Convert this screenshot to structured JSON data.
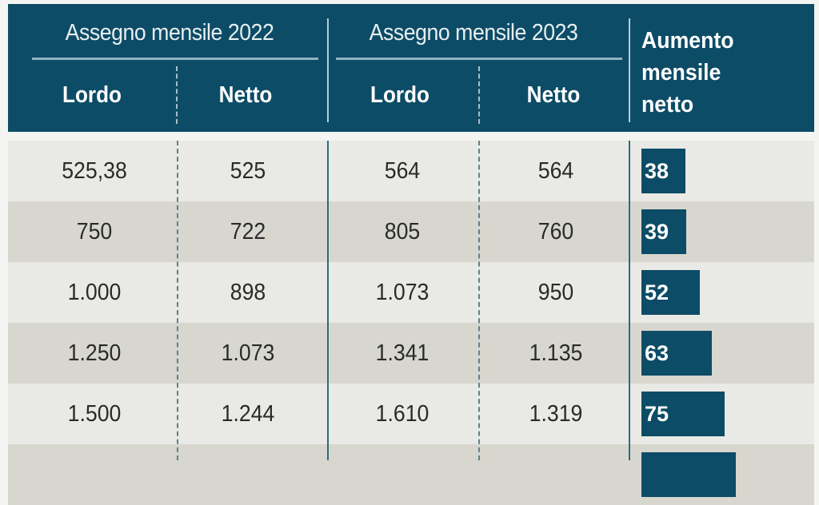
{
  "header": {
    "group_2022": "Assegno mensile 2022",
    "group_2023": "Assegno mensile 2023",
    "lordo": "Lordo",
    "netto": "Netto",
    "increase_line1": "Aumento",
    "increase_line2": "mensile",
    "increase_line3": "netto"
  },
  "colors": {
    "header_bg": "#0d4c66",
    "row_light": "#e9e9e5",
    "row_dark": "#d8d7cf",
    "bar": "#0d4c66"
  },
  "chart_data": {
    "type": "table",
    "columns": [
      "Assegno mensile 2022 Lordo",
      "Assegno mensile 2022 Netto",
      "Assegno mensile 2023 Lordo",
      "Assegno mensile 2023 Netto",
      "Aumento mensile netto"
    ],
    "rows": [
      {
        "lordo_2022": "525,38",
        "netto_2022": "525",
        "lordo_2023": "564",
        "netto_2023": "564",
        "aumento": "38",
        "aumento_value": 38
      },
      {
        "lordo_2022": "750",
        "netto_2022": "722",
        "lordo_2023": "805",
        "netto_2023": "760",
        "aumento": "39",
        "aumento_value": 39
      },
      {
        "lordo_2022": "1.000",
        "netto_2022": "898",
        "lordo_2023": "1.073",
        "netto_2023": "950",
        "aumento": "52",
        "aumento_value": 52
      },
      {
        "lordo_2022": "1.250",
        "netto_2022": "1.073",
        "lordo_2023": "1.341",
        "netto_2023": "1.135",
        "aumento": "63",
        "aumento_value": 63
      },
      {
        "lordo_2022": "1.500",
        "netto_2022": "1.244",
        "lordo_2023": "1.610",
        "netto_2023": "1.319",
        "aumento": "75",
        "aumento_value": 75
      },
      {
        "aumento_value": 86
      }
    ]
  }
}
